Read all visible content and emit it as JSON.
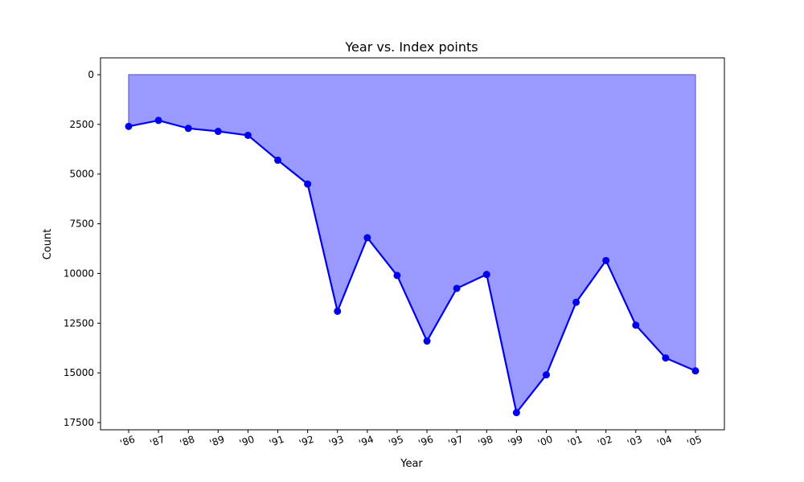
{
  "chart_data": {
    "type": "area",
    "title": "Year vs. Index points",
    "xlabel": "Year",
    "ylabel": "Count",
    "categories": [
      "'86",
      "'87",
      "'88",
      "'89",
      "'90",
      "'91",
      "'92",
      "'93",
      "'94",
      "'95",
      "'96",
      "'97",
      "'98",
      "'99",
      "'00",
      "'01",
      "'02",
      "'03",
      "'04",
      "'05"
    ],
    "values": [
      2600,
      2300,
      2700,
      2850,
      3050,
      4300,
      5500,
      11900,
      8200,
      10100,
      13400,
      10750,
      10050,
      17000,
      15100,
      11450,
      9350,
      12600,
      14250,
      14900
    ],
    "y_ticks": [
      0,
      2500,
      5000,
      7500,
      10000,
      12500,
      15000,
      17500
    ],
    "ylim": [
      0,
      17850
    ],
    "y_inverted": true,
    "grid": false,
    "line_color": "#0000ee",
    "fill_color": "#9999ff"
  }
}
